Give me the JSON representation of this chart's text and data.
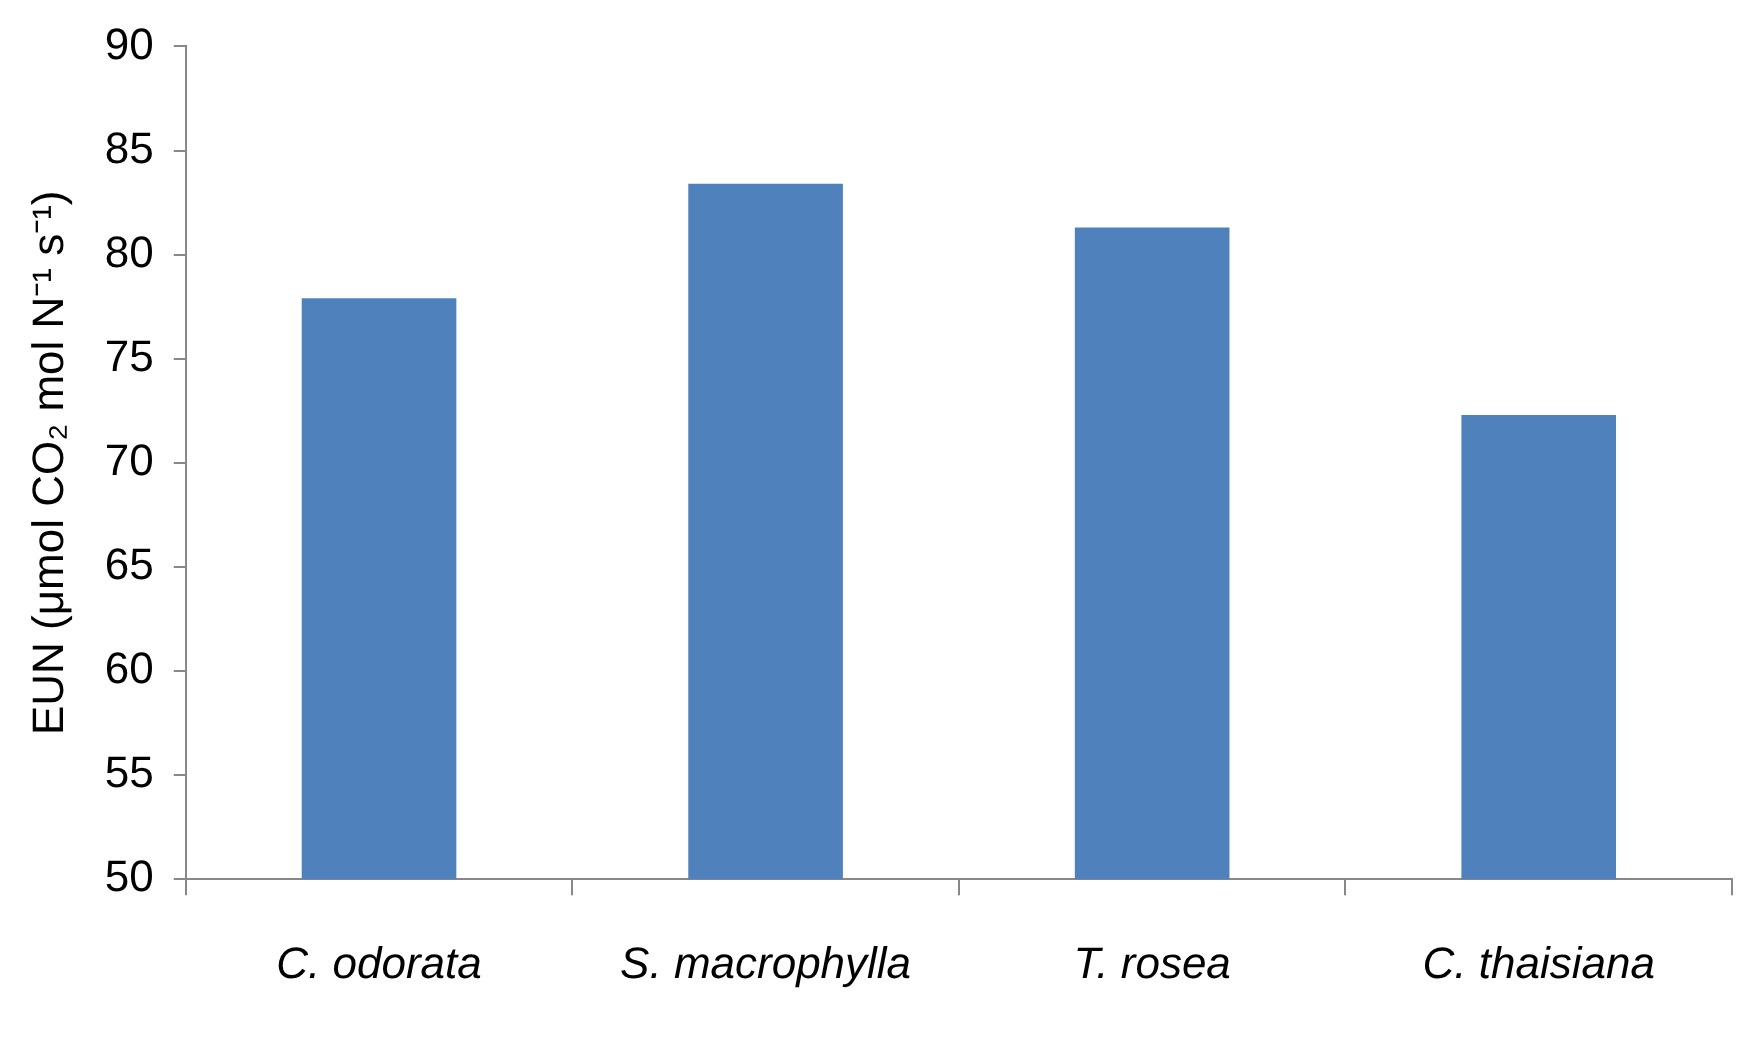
{
  "chart_data": {
    "type": "bar",
    "ylabel": "EUN (μmol CO₂ mol N⁻¹ s⁻¹)",
    "categories": [
      "C. odorata",
      "S. macrophylla",
      "T. rosea",
      "C. thaisiana"
    ],
    "values": [
      77.9,
      83.4,
      81.3,
      72.3
    ],
    "color": "#4f81bd",
    "ylim": [
      50,
      90
    ],
    "yticks": [
      50,
      55,
      60,
      65,
      70,
      75,
      80,
      85,
      90
    ],
    "grid": false,
    "legend": false
  }
}
